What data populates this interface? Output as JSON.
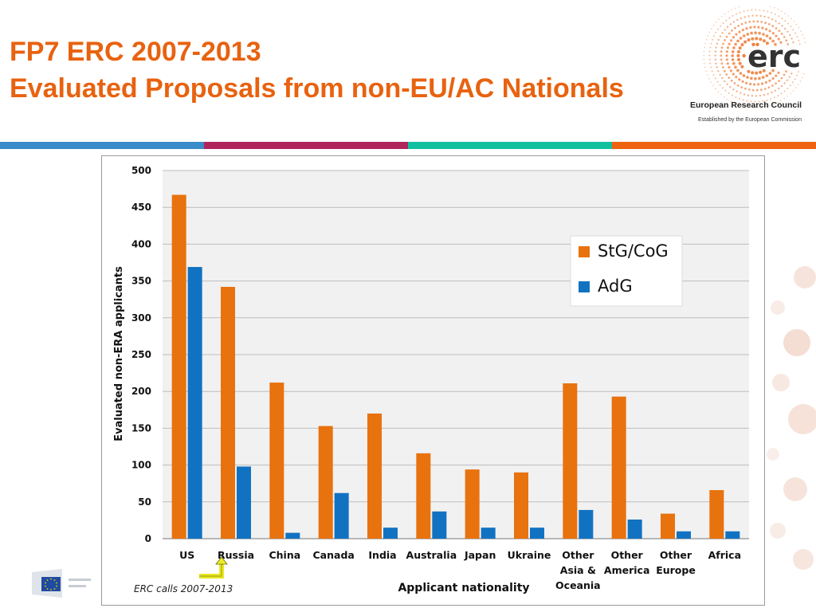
{
  "header": {
    "title_line1": "FP7 ERC 2007-2013",
    "title_line2": "Evaluated Proposals from non-EU/AC Nationals"
  },
  "logo": {
    "mark": "erc",
    "name": "European Research Council",
    "tagline": "Established by the European Commission",
    "icon": "erc-dots-logo"
  },
  "footer_logo": {
    "icon": "european-commission-logo"
  },
  "colors": {
    "title": "#e8620f",
    "stripe": [
      "#3a8bc9",
      "#b0245c",
      "#12c0a0",
      "#ee6310"
    ],
    "stg": "#e8720e",
    "adg": "#1272c2"
  },
  "chart_data": {
    "type": "bar",
    "categories": [
      "US",
      "Russia",
      "China",
      "Canada",
      "India",
      "Australia",
      "Japan",
      "Ukraine",
      "Other Asia & Oceania",
      "Other America",
      "Other Europe",
      "Africa"
    ],
    "category_lines": [
      [
        "US"
      ],
      [
        "Russia"
      ],
      [
        "China"
      ],
      [
        "Canada"
      ],
      [
        "India"
      ],
      [
        "Australia"
      ],
      [
        "Japan"
      ],
      [
        "Ukraine"
      ],
      [
        "Other",
        "Asia &",
        "Oceania"
      ],
      [
        "Other",
        "America"
      ],
      [
        "Other",
        "Europe"
      ],
      [
        "Africa"
      ]
    ],
    "series": [
      {
        "name": "StG/CoG",
        "color": "#e8720e",
        "values": [
          467,
          342,
          212,
          153,
          170,
          116,
          94,
          90,
          211,
          193,
          34,
          66
        ]
      },
      {
        "name": "AdG",
        "color": "#1272c2",
        "values": [
          369,
          98,
          8,
          62,
          15,
          37,
          15,
          15,
          39,
          26,
          10,
          10
        ]
      }
    ],
    "xlabel": "Applicant nationality",
    "ylabel": "Evaluated non-ERA applicants",
    "ylim": [
      0,
      500
    ],
    "yticks": [
      0,
      50,
      100,
      150,
      200,
      250,
      300,
      350,
      400,
      450,
      500
    ],
    "grid": true,
    "legend": "top-right",
    "note": "ERC calls 2007-2013",
    "highlight_category": "Russia"
  }
}
